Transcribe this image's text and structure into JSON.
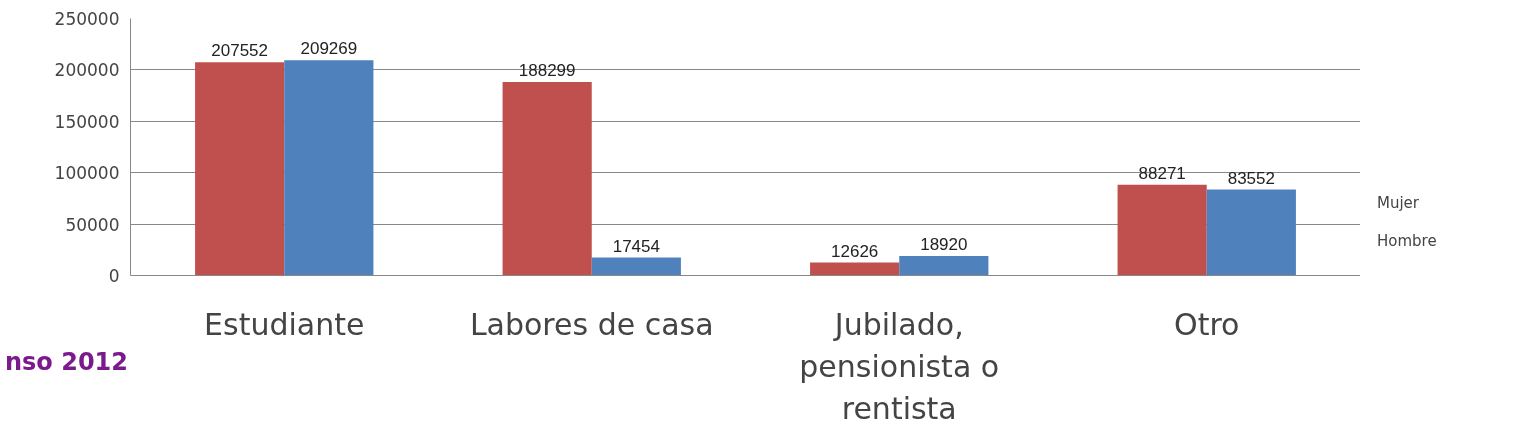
{
  "chart_data": {
    "type": "bar",
    "categories": [
      "Estudiante",
      "Labores de casa",
      "Jubilado, pensionista o rentista",
      "Otro"
    ],
    "series": [
      {
        "name": "Mujer",
        "color": "#c0504d",
        "values": [
          207552,
          188299,
          12626,
          88271
        ]
      },
      {
        "name": "Hombre",
        "color": "#4f81bd",
        "values": [
          209269,
          17454,
          18920,
          83552
        ]
      }
    ],
    "ylim": [
      0,
      250000
    ],
    "yticks": [
      0,
      50000,
      100000,
      150000,
      200000,
      250000
    ],
    "grid": "y",
    "legend": "right",
    "data_labels": true,
    "annotations": [
      "nso 2012"
    ]
  }
}
